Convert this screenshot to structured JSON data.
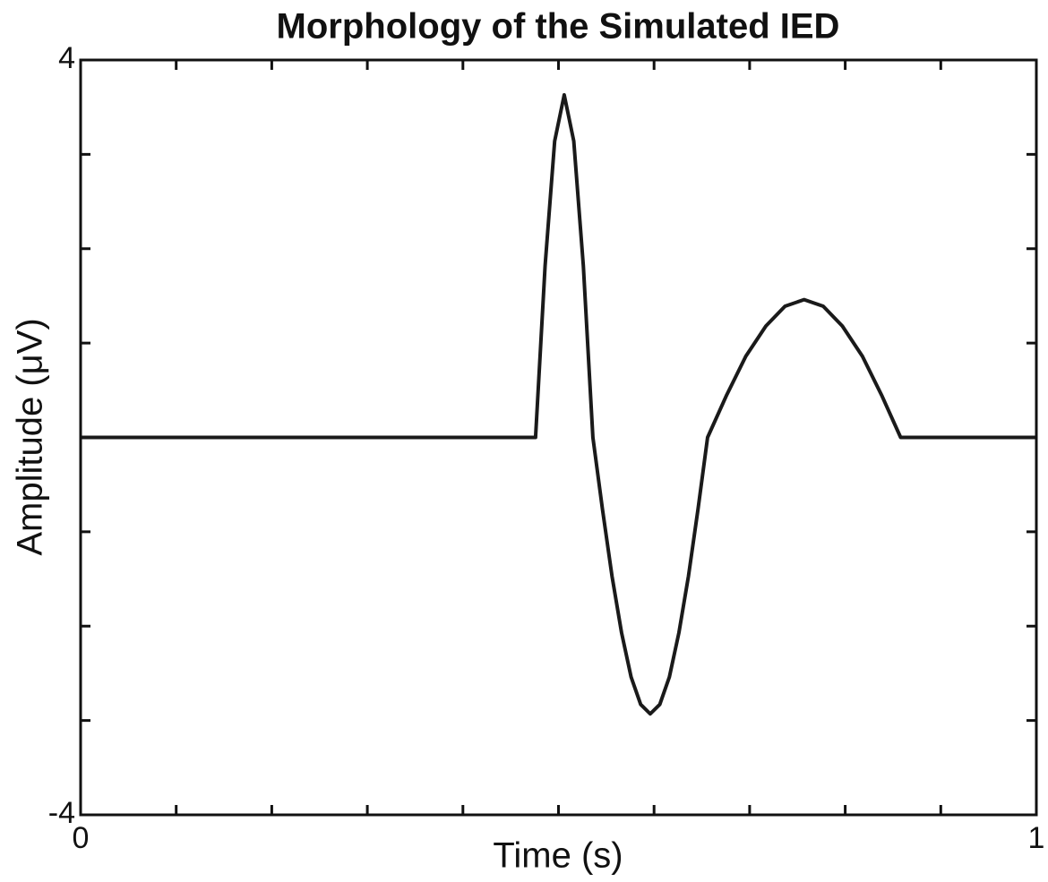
{
  "chart_data": {
    "type": "line",
    "title": "Morphology of the Simulated IED",
    "xlabel": "Time (s)",
    "ylabel": "Amplitude (μV)",
    "x": [
      0,
      0.476,
      0.486,
      0.496,
      0.506,
      0.516,
      0.526,
      0.536,
      0.546,
      0.556,
      0.566,
      0.576,
      0.586,
      0.596,
      0.606,
      0.616,
      0.626,
      0.636,
      0.646,
      0.656,
      0.676,
      0.696,
      0.717,
      0.737,
      0.757,
      0.777,
      0.797,
      0.818,
      0.838,
      0.858,
      1
    ],
    "series": [
      {
        "name": "IED",
        "color": "#1a1a1a",
        "values": [
          0,
          0,
          1.82,
          3.14,
          3.63,
          3.14,
          1.82,
          0,
          -0.76,
          -1.47,
          -2.07,
          -2.54,
          -2.83,
          -2.93,
          -2.83,
          -2.54,
          -2.07,
          -1.47,
          -0.76,
          0,
          0.45,
          0.86,
          1.18,
          1.39,
          1.46,
          1.39,
          1.18,
          0.86,
          0.45,
          0,
          0
        ]
      }
    ],
    "xlim": [
      0,
      1
    ],
    "ylim": [
      -4,
      4
    ],
    "xticks": [
      0,
      1
    ],
    "yticks": [
      -4,
      4
    ],
    "xtick_marks": [
      0,
      0.1,
      0.2,
      0.3,
      0.4,
      0.5,
      0.6,
      0.7,
      0.8,
      0.9,
      1
    ],
    "ytick_marks": [
      -4,
      -3,
      -2,
      -1,
      0,
      1,
      2,
      3,
      4
    ],
    "grid": false
  }
}
